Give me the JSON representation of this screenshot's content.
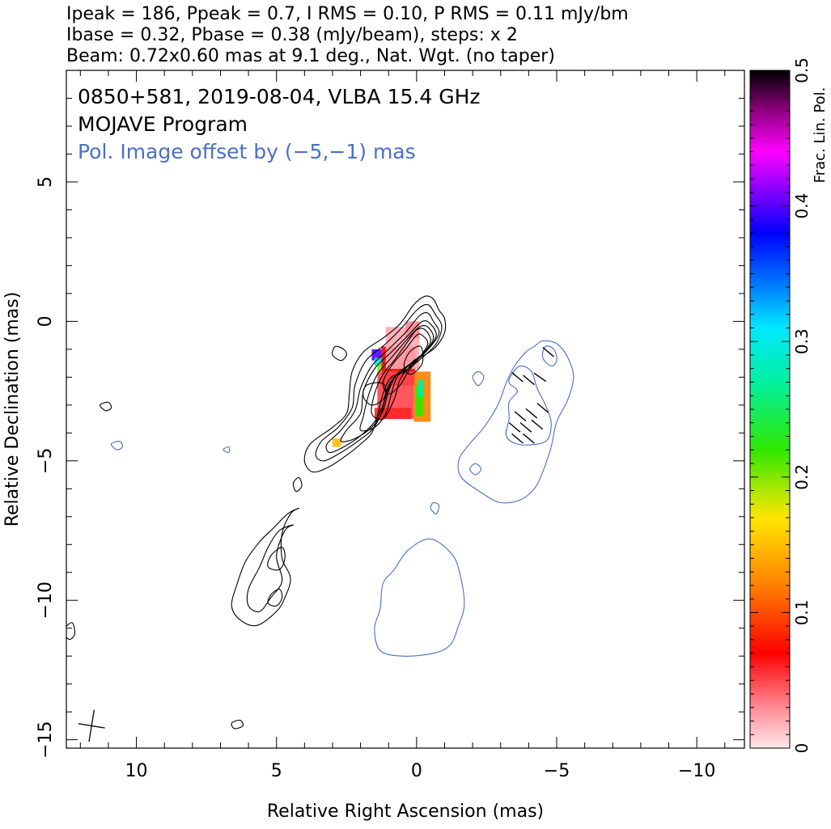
{
  "header": {
    "line1": "Ipeak = 186, Ppeak = 0.7, I RMS = 0.10, P RMS = 0.11 mJy/bm",
    "line2": "Ibase = 0.32, Pbase = 0.38 (mJy/beam), steps: x 2",
    "line3": "Beam: 0.72x0.60 mas at 9.1 deg., Nat. Wgt. (no taper)"
  },
  "annotations": {
    "source": "0850+581, 2019-08-04, VLBA 15.4 GHz",
    "program": "MOJAVE Program",
    "offset": "Pol. Image offset by (−5,−1) mas"
  },
  "colors": {
    "total_intensity_contours": "#000000",
    "polarized_contours": "#4a6fc8",
    "offset_text": "#4a6fc8"
  },
  "chart_data": {
    "type": "heatmap",
    "xlabel": "Relative Right Ascension (mas)",
    "ylabel": "Relative Declination (mas)",
    "xlim": [
      12.5,
      -11.7
    ],
    "ylim": [
      -15.3,
      9.0
    ],
    "x_ticks": [
      10,
      5,
      0,
      -5,
      -10
    ],
    "x_tick_labels": [
      "10",
      "5",
      "0",
      "−5",
      "−10"
    ],
    "y_ticks": [
      5,
      0,
      -5,
      -10,
      -15
    ],
    "y_tick_labels": [
      "5",
      "0",
      "−5",
      "−10",
      "−15"
    ],
    "colorbar": {
      "label": "Frac. Lin. Pol.",
      "range": [
        0,
        0.5
      ],
      "ticks": [
        0,
        0.1,
        0.2,
        0.3,
        0.4,
        0.5
      ],
      "tick_labels": [
        "0",
        "0.1",
        "0.2",
        "0.3",
        "0.4",
        "0.5"
      ]
    },
    "contours_total_intensity": [
      [
        [
          -0.8,
          0.4
        ],
        [
          -1.0,
          0.1
        ],
        [
          -1.0,
          -0.4
        ],
        [
          -0.7,
          -0.9
        ],
        [
          -0.3,
          -1.2
        ],
        [
          0.1,
          -1.4
        ],
        [
          0.4,
          -1.8
        ],
        [
          0.9,
          -2.0
        ],
        [
          1.2,
          -2.6
        ],
        [
          1.4,
          -3.4
        ],
        [
          1.6,
          -4.0
        ],
        [
          2.0,
          -4.4
        ],
        [
          2.5,
          -4.8
        ],
        [
          3.1,
          -5.2
        ],
        [
          3.7,
          -5.4
        ],
        [
          4.0,
          -5.0
        ],
        [
          3.8,
          -4.4
        ],
        [
          3.0,
          -3.8
        ],
        [
          2.5,
          -3.3
        ],
        [
          2.4,
          -2.6
        ],
        [
          2.3,
          -1.8
        ],
        [
          1.9,
          -1.1
        ],
        [
          1.2,
          -0.6
        ],
        [
          0.6,
          -0.1
        ],
        [
          0.1,
          0.6
        ],
        [
          -0.3,
          0.9
        ],
        [
          -0.6,
          0.8
        ]
      ],
      [
        [
          -0.7,
          0.2
        ],
        [
          -0.9,
          -0.2
        ],
        [
          -0.7,
          -0.8
        ],
        [
          -0.2,
          -1.3
        ],
        [
          0.3,
          -1.7
        ],
        [
          0.8,
          -2.0
        ],
        [
          1.1,
          -2.7
        ],
        [
          1.3,
          -3.4
        ],
        [
          1.6,
          -3.9
        ],
        [
          2.1,
          -4.3
        ],
        [
          2.7,
          -4.7
        ],
        [
          3.3,
          -5.0
        ],
        [
          3.6,
          -4.8
        ],
        [
          3.4,
          -4.3
        ],
        [
          2.8,
          -3.8
        ],
        [
          2.3,
          -3.1
        ],
        [
          2.2,
          -2.3
        ],
        [
          1.8,
          -1.4
        ],
        [
          1.1,
          -0.8
        ],
        [
          0.5,
          -0.2
        ],
        [
          0.0,
          0.4
        ],
        [
          -0.4,
          0.6
        ]
      ],
      [
        [
          -0.6,
          0.0
        ],
        [
          -0.8,
          -0.4
        ],
        [
          -0.5,
          -0.9
        ],
        [
          0.0,
          -1.4
        ],
        [
          0.6,
          -1.8
        ],
        [
          1.0,
          -2.3
        ],
        [
          1.2,
          -3.0
        ],
        [
          1.5,
          -3.6
        ],
        [
          2.0,
          -4.1
        ],
        [
          2.6,
          -4.5
        ],
        [
          3.1,
          -4.7
        ],
        [
          3.2,
          -4.4
        ],
        [
          2.7,
          -3.9
        ],
        [
          2.2,
          -3.2
        ],
        [
          2.0,
          -2.4
        ],
        [
          1.6,
          -1.6
        ],
        [
          1.0,
          -1.0
        ],
        [
          0.4,
          -0.4
        ],
        [
          -0.1,
          0.2
        ],
        [
          -0.4,
          0.3
        ]
      ],
      [
        [
          -0.5,
          -0.1
        ],
        [
          -0.7,
          -0.5
        ],
        [
          -0.4,
          -1.0
        ],
        [
          0.2,
          -1.5
        ],
        [
          0.7,
          -1.9
        ],
        [
          1.0,
          -2.5
        ],
        [
          1.2,
          -3.2
        ],
        [
          1.6,
          -3.8
        ],
        [
          2.2,
          -4.2
        ],
        [
          2.7,
          -4.3
        ],
        [
          2.5,
          -3.9
        ],
        [
          2.0,
          -3.3
        ],
        [
          1.9,
          -2.5
        ],
        [
          1.5,
          -1.7
        ],
        [
          0.9,
          -1.1
        ],
        [
          0.3,
          -0.5
        ],
        [
          -0.2,
          0.0
        ]
      ],
      [
        [
          -0.4,
          -0.2
        ],
        [
          -0.6,
          -0.6
        ],
        [
          -0.3,
          -1.1
        ],
        [
          0.3,
          -1.6
        ],
        [
          0.7,
          -2.0
        ],
        [
          0.9,
          -2.6
        ],
        [
          1.1,
          -3.3
        ],
        [
          1.5,
          -3.8
        ],
        [
          2.0,
          -3.9
        ],
        [
          1.9,
          -3.4
        ],
        [
          1.7,
          -2.6
        ],
        [
          1.4,
          -1.9
        ],
        [
          0.9,
          -1.3
        ],
        [
          0.3,
          -0.6
        ],
        [
          -0.1,
          -0.2
        ]
      ],
      [
        [
          -0.3,
          -0.3
        ],
        [
          -0.5,
          -0.7
        ],
        [
          -0.2,
          -1.2
        ],
        [
          0.3,
          -1.7
        ],
        [
          0.6,
          -2.1
        ],
        [
          0.8,
          -2.8
        ],
        [
          1.2,
          -3.5
        ],
        [
          1.6,
          -3.3
        ],
        [
          1.5,
          -2.6
        ],
        [
          1.2,
          -1.9
        ],
        [
          0.8,
          -1.4
        ],
        [
          0.3,
          -0.7
        ],
        [
          0.0,
          -0.3
        ]
      ],
      [
        [
          -0.2,
          -0.5
        ],
        [
          -0.4,
          -0.8
        ],
        [
          -0.1,
          -1.3
        ],
        [
          0.3,
          -1.8
        ],
        [
          0.6,
          -2.3
        ],
        [
          1.0,
          -2.6
        ],
        [
          1.2,
          -2.2
        ],
        [
          0.9,
          -1.6
        ],
        [
          0.4,
          -1.0
        ],
        [
          0.0,
          -0.5
        ]
      ],
      [
        [
          -0.15,
          -0.9
        ],
        [
          0.25,
          -1.1
        ],
        [
          0.45,
          -1.6
        ],
        [
          0.2,
          -1.9
        ],
        [
          -0.2,
          -1.5
        ]
      ],
      [
        [
          1.3,
          -2.2
        ],
        [
          1.8,
          -2.3
        ],
        [
          1.9,
          -2.7
        ],
        [
          1.6,
          -3.0
        ],
        [
          1.2,
          -2.8
        ],
        [
          1.1,
          -2.4
        ]
      ],
      [
        [
          2.6,
          -1.0
        ],
        [
          2.9,
          -0.9
        ],
        [
          3.0,
          -1.2
        ],
        [
          2.7,
          -1.4
        ],
        [
          2.5,
          -1.2
        ]
      ],
      [
        [
          4.2,
          -6.7
        ],
        [
          4.5,
          -6.9
        ],
        [
          4.8,
          -7.6
        ],
        [
          4.8,
          -8.5
        ],
        [
          4.5,
          -9.2
        ],
        [
          4.7,
          -9.9
        ],
        [
          5.0,
          -10.4
        ],
        [
          5.7,
          -10.9
        ],
        [
          6.3,
          -10.7
        ],
        [
          6.6,
          -10.2
        ],
        [
          6.4,
          -9.4
        ],
        [
          6.1,
          -8.6
        ],
        [
          5.6,
          -7.9
        ],
        [
          5.1,
          -7.4
        ],
        [
          4.6,
          -6.9
        ]
      ],
      [
        [
          4.4,
          -7.3
        ],
        [
          4.7,
          -7.5
        ],
        [
          5.0,
          -8.4
        ],
        [
          4.8,
          -9.3
        ],
        [
          5.2,
          -9.9
        ],
        [
          5.6,
          -10.4
        ],
        [
          6.0,
          -10.2
        ],
        [
          6.0,
          -9.6
        ],
        [
          5.6,
          -8.8
        ],
        [
          5.3,
          -8.1
        ],
        [
          4.9,
          -7.5
        ]
      ],
      [
        [
          4.8,
          -8.1
        ],
        [
          5.2,
          -8.4
        ],
        [
          5.3,
          -8.8
        ],
        [
          4.9,
          -8.9
        ],
        [
          4.7,
          -8.5
        ]
      ],
      [
        [
          4.9,
          -9.6
        ],
        [
          5.2,
          -9.8
        ],
        [
          5.3,
          -10.1
        ],
        [
          5.0,
          -10.2
        ],
        [
          4.8,
          -9.9
        ]
      ],
      [
        [
          4.2,
          -5.6
        ],
        [
          4.4,
          -5.8
        ],
        [
          4.3,
          -6.1
        ],
        [
          4.1,
          -5.9
        ]
      ],
      [
        [
          11.0,
          -2.9
        ],
        [
          11.3,
          -3.0
        ],
        [
          11.1,
          -3.2
        ],
        [
          10.9,
          -3.1
        ]
      ],
      [
        [
          12.3,
          -10.8
        ],
        [
          12.6,
          -11.1
        ],
        [
          12.4,
          -11.4
        ],
        [
          12.2,
          -11.2
        ]
      ],
      [
        [
          6.3,
          -14.3
        ],
        [
          6.6,
          -14.4
        ],
        [
          6.5,
          -14.6
        ],
        [
          6.2,
          -14.5
        ]
      ]
    ],
    "contours_polarized": [
      [
        [
          -4.2,
          -0.9
        ],
        [
          -4.5,
          -0.7
        ],
        [
          -5.0,
          -0.8
        ],
        [
          -5.4,
          -1.3
        ],
        [
          -5.6,
          -2.0
        ],
        [
          -5.4,
          -2.8
        ],
        [
          -5.0,
          -3.6
        ],
        [
          -4.8,
          -4.5
        ],
        [
          -4.5,
          -5.4
        ],
        [
          -4.2,
          -6.0
        ],
        [
          -3.7,
          -6.4
        ],
        [
          -3.0,
          -6.5
        ],
        [
          -2.4,
          -6.2
        ],
        [
          -1.6,
          -5.6
        ],
        [
          -1.5,
          -5.0
        ],
        [
          -1.8,
          -4.5
        ],
        [
          -2.4,
          -3.8
        ],
        [
          -2.9,
          -3.0
        ],
        [
          -3.2,
          -2.2
        ],
        [
          -3.5,
          -1.6
        ],
        [
          -3.9,
          -1.1
        ]
      ],
      [
        [
          -3.4,
          -1.9
        ],
        [
          -3.7,
          -1.6
        ],
        [
          -4.1,
          -1.8
        ],
        [
          -4.3,
          -2.4
        ],
        [
          -4.6,
          -3.0
        ],
        [
          -4.8,
          -3.6
        ],
        [
          -4.7,
          -4.2
        ],
        [
          -4.3,
          -4.4
        ],
        [
          -3.6,
          -4.4
        ],
        [
          -3.2,
          -4.1
        ],
        [
          -3.3,
          -3.5
        ],
        [
          -3.3,
          -2.9
        ],
        [
          -3.6,
          -2.5
        ],
        [
          -3.3,
          -2.2
        ]
      ],
      [
        [
          -4.6,
          -0.9
        ],
        [
          -4.9,
          -1.0
        ],
        [
          -5.0,
          -1.4
        ],
        [
          -4.8,
          -1.6
        ],
        [
          -4.5,
          -1.3
        ]
      ],
      [
        [
          -2.2,
          -1.8
        ],
        [
          -2.4,
          -2.0
        ],
        [
          -2.2,
          -2.3
        ],
        [
          -2.0,
          -2.0
        ]
      ],
      [
        [
          -0.5,
          -7.8
        ],
        [
          -1.3,
          -8.4
        ],
        [
          -1.6,
          -9.3
        ],
        [
          -1.7,
          -10.2
        ],
        [
          -1.5,
          -10.9
        ],
        [
          -1.2,
          -11.6
        ],
        [
          -0.6,
          -11.9
        ],
        [
          0.5,
          -12.0
        ],
        [
          1.3,
          -11.8
        ],
        [
          1.5,
          -11.0
        ],
        [
          1.3,
          -10.3
        ],
        [
          1.2,
          -9.4
        ],
        [
          0.8,
          -8.9
        ],
        [
          0.3,
          -8.2
        ]
      ],
      [
        [
          -0.6,
          -6.5
        ],
        [
          -0.8,
          -6.6
        ],
        [
          -0.7,
          -6.9
        ],
        [
          -0.5,
          -6.7
        ]
      ],
      [
        [
          -2.1,
          -5.1
        ],
        [
          -2.3,
          -5.3
        ],
        [
          -2.1,
          -5.5
        ],
        [
          -1.9,
          -5.3
        ]
      ],
      [
        [
          10.6,
          -4.3
        ],
        [
          10.9,
          -4.4
        ],
        [
          10.7,
          -4.6
        ],
        [
          10.5,
          -4.5
        ]
      ],
      [
        [
          6.7,
          -4.5
        ],
        [
          6.9,
          -4.6
        ],
        [
          6.7,
          -4.7
        ]
      ]
    ],
    "polarization_fraction_cells": [
      {
        "x": 1.6,
        "y": -1.0,
        "w": 0.35,
        "h": 0.4,
        "value": 0.4
      },
      {
        "x": 1.5,
        "y": -1.3,
        "w": 0.35,
        "h": 0.3,
        "value": 0.3
      },
      {
        "x": 1.4,
        "y": -1.5,
        "w": 0.35,
        "h": 0.3,
        "value": 0.2
      },
      {
        "x": 1.25,
        "y": -0.9,
        "w": 1.2,
        "h": 1.4,
        "value": 0.07
      },
      {
        "x": 1.4,
        "y": -1.8,
        "w": 1.3,
        "h": 1.7,
        "value": 0.05
      },
      {
        "x": 1.5,
        "y": -3.1,
        "w": 1.3,
        "h": 0.4,
        "value": 0.06
      },
      {
        "x": 0.1,
        "y": -1.8,
        "w": 0.6,
        "h": 1.8,
        "value": 0.12
      },
      {
        "x": 0.05,
        "y": -2.3,
        "w": 0.3,
        "h": 1.1,
        "value": 0.22
      },
      {
        "x": -0.05,
        "y": -2.1,
        "w": 0.2,
        "h": 0.6,
        "value": 0.27
      },
      {
        "x": 1.1,
        "y": -0.2,
        "w": 1.2,
        "h": 1.5,
        "value": 0.02
      },
      {
        "x": 0.4,
        "y": 0.0,
        "w": 0.5,
        "h": 0.6,
        "value": 0.03
      },
      {
        "x": 3.0,
        "y": -4.2,
        "w": 0.3,
        "h": 0.3,
        "value": 0.15
      }
    ],
    "evpa_ticks": [
      {
        "x": -4.7,
        "y": -1.1,
        "angle": 40
      },
      {
        "x": -3.6,
        "y": -2.0,
        "angle": 40
      },
      {
        "x": -4.0,
        "y": -2.1,
        "angle": 40
      },
      {
        "x": -4.4,
        "y": -2.0,
        "angle": 35
      },
      {
        "x": -3.7,
        "y": -3.4,
        "angle": 40
      },
      {
        "x": -4.1,
        "y": -3.3,
        "angle": 40
      },
      {
        "x": -4.5,
        "y": -3.1,
        "angle": 40
      },
      {
        "x": -3.5,
        "y": -3.8,
        "angle": 40
      },
      {
        "x": -3.9,
        "y": -3.8,
        "angle": 40
      },
      {
        "x": -4.3,
        "y": -3.7,
        "angle": 40
      },
      {
        "x": -3.6,
        "y": -4.2,
        "angle": 40
      },
      {
        "x": -4.0,
        "y": -4.2,
        "angle": 40
      }
    ],
    "beam": {
      "major": 0.72,
      "minor": 0.6,
      "pa": 9.1
    }
  }
}
